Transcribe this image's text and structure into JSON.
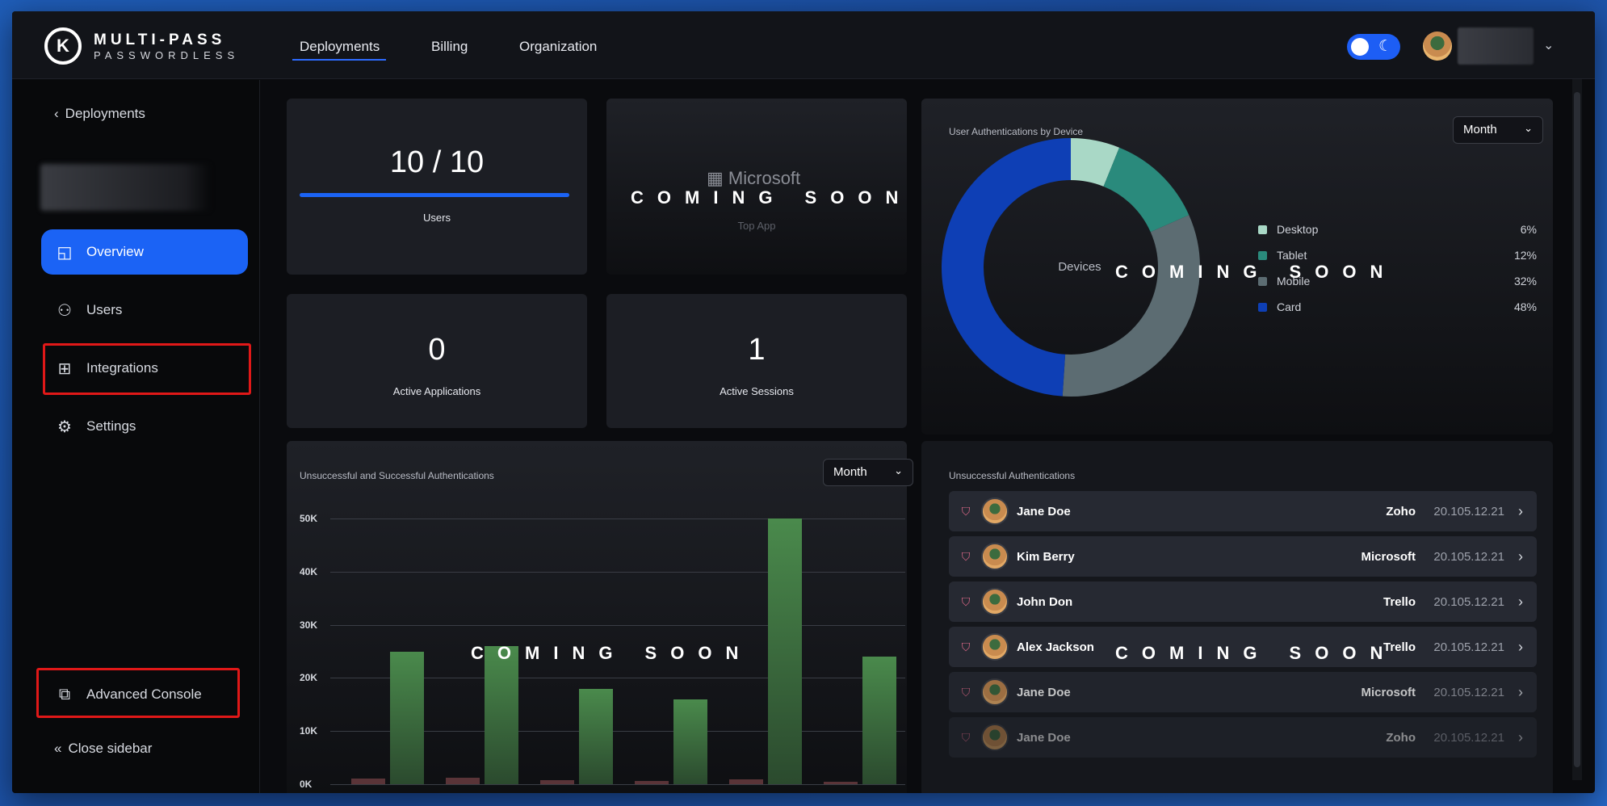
{
  "brand": {
    "logo_letter": "K",
    "name": "MULTI-PASS",
    "tagline": "PASSWORDLESS"
  },
  "nav": {
    "items": [
      "Deployments",
      "Billing",
      "Organization"
    ],
    "active": "Deployments"
  },
  "theme_toggle": {
    "state": "dark",
    "icon": "moon-icon"
  },
  "sidebar": {
    "back_label": "Deployments",
    "items": [
      {
        "label": "Overview",
        "icon": "chart-icon",
        "active": true
      },
      {
        "label": "Users",
        "icon": "users-icon"
      },
      {
        "label": "Integrations",
        "icon": "grid-icon"
      },
      {
        "label": "Settings",
        "icon": "gear-icon"
      }
    ],
    "advanced_label": "Advanced Console",
    "close_label": "Close sidebar"
  },
  "stats": {
    "users": {
      "value": "10 / 10",
      "label": "Users",
      "progress": 1.0
    },
    "top_app": {
      "value": "Microsoft",
      "label": "Top App",
      "overlay": "COMING SOON"
    },
    "active_apps": {
      "value": "0",
      "label": "Active Applications"
    },
    "active_sessions": {
      "value": "1",
      "label": "Active Sessions"
    }
  },
  "device_chart": {
    "title": "User Authentications by Device",
    "filter": "Month",
    "center_label": "Devices",
    "overlay": "COMING SOON"
  },
  "auth_chart": {
    "title": "Unsuccessful and Successful Authentications",
    "filter": "Month",
    "overlay": "COMING SOON"
  },
  "unsuccessful": {
    "title": "Unsuccessful Authentications",
    "overlay": "COMING SOON",
    "rows": [
      {
        "name": "Jane Doe",
        "app": "Zoho",
        "ip": "20.105.12.21"
      },
      {
        "name": "Kim Berry",
        "app": "Microsoft",
        "ip": "20.105.12.21"
      },
      {
        "name": "John Don",
        "app": "Trello",
        "ip": "20.105.12.21"
      },
      {
        "name": "Alex Jackson",
        "app": "Trello",
        "ip": "20.105.12.21"
      },
      {
        "name": "Jane Doe",
        "app": "Microsoft",
        "ip": "20.105.12.21"
      },
      {
        "name": "Jane Doe",
        "app": "Zoho",
        "ip": "20.105.12.21"
      }
    ]
  },
  "chart_data": [
    {
      "type": "pie",
      "title": "User Authentications by Device",
      "categories": [
        "Desktop",
        "Tablet",
        "Mobile",
        "Card"
      ],
      "values": [
        6,
        12,
        32,
        48
      ],
      "colors": [
        "#a9d8c6",
        "#2a8a7c",
        "#5c6c72",
        "#0e3fb5"
      ],
      "legend": "right"
    },
    {
      "type": "bar",
      "title": "Unsuccessful and Successful Authentications",
      "ylim": [
        0,
        50000
      ],
      "yticks": [
        "0K",
        "10K",
        "20K",
        "30K",
        "40K",
        "50K"
      ],
      "series": [
        {
          "values": [
            1000,
            1200,
            800,
            600,
            900,
            400
          ],
          "color": "#5a3438"
        },
        {
          "values": [
            25000,
            26000,
            18000,
            16000,
            50000,
            24000
          ],
          "color": "#4a8a4c"
        }
      ]
    }
  ]
}
